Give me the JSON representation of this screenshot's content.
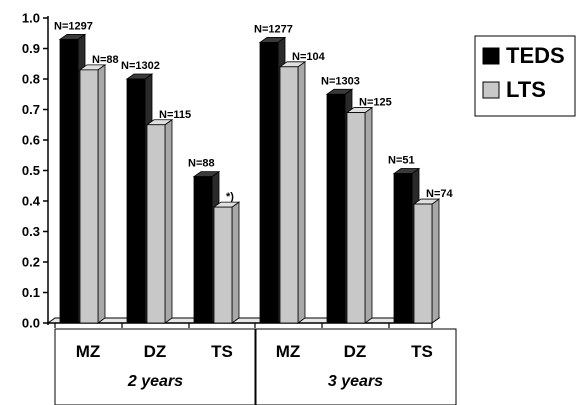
{
  "chart_data": {
    "type": "bar",
    "title": "",
    "xlabel": "",
    "ylabel": "",
    "ylim": [
      0,
      1.0
    ],
    "yticks": [
      "0.0",
      "0.1",
      "0.2",
      "0.3",
      "0.4",
      "0.5",
      "0.6",
      "0.7",
      "0.8",
      "0.9",
      "1.0"
    ],
    "categories": [
      "MZ",
      "DZ",
      "TS",
      "MZ",
      "DZ",
      "TS"
    ],
    "groups": [
      {
        "label": "2 years",
        "categories": [
          "MZ",
          "DZ",
          "TS"
        ]
      },
      {
        "label": "3 years",
        "categories": [
          "MZ",
          "DZ",
          "TS"
        ]
      }
    ],
    "series": [
      {
        "name": "TEDS",
        "color": "#000000",
        "values": [
          0.93,
          0.8,
          0.48,
          0.92,
          0.75,
          0.49
        ],
        "labels": [
          "N=1297",
          "N=1302",
          "N=88",
          "N=1277",
          "N=1303",
          "N=51"
        ]
      },
      {
        "name": "LTS",
        "color": "#c8c8c8",
        "values": [
          0.83,
          0.65,
          0.38,
          0.84,
          0.69,
          0.39
        ],
        "labels": [
          "N=88",
          "N=115",
          "*)",
          "N=104",
          "N=125",
          "N=74"
        ]
      }
    ],
    "legend_position": "right",
    "grid": false
  }
}
